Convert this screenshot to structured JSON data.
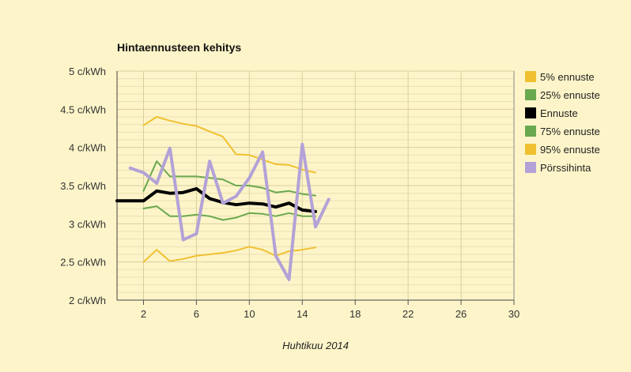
{
  "chart_data": {
    "type": "line",
    "title": "Hintaennusteen kehitys",
    "xlabel": "Huhtikuu 2014",
    "ylabel": "",
    "xlim": [
      0,
      30
    ],
    "ylim": [
      2,
      5
    ],
    "x_ticks": [
      2,
      6,
      10,
      14,
      18,
      22,
      26,
      30
    ],
    "y_ticks": [
      {
        "value": 2,
        "label": "2 c/kWh"
      },
      {
        "value": 2.5,
        "label": "2.5 c/kWh"
      },
      {
        "value": 3,
        "label": "3 c/kWh"
      },
      {
        "value": 3.5,
        "label": "3.5 c/kWh"
      },
      {
        "value": 4,
        "label": "4 c/kWh"
      },
      {
        "value": 4.5,
        "label": "4.5 c/kWh"
      },
      {
        "value": 5,
        "label": "5 c/kWh"
      }
    ],
    "grid": true,
    "legend_position": "right",
    "series": [
      {
        "name": "5% ennuste",
        "color": "#f0c030",
        "x": [
          2,
          3,
          4,
          5,
          6,
          7,
          8,
          9,
          10,
          11,
          12,
          13,
          14,
          15
        ],
        "y": [
          2.5,
          2.66,
          2.51,
          2.54,
          2.58,
          2.6,
          2.62,
          2.65,
          2.7,
          2.66,
          2.58,
          2.64,
          2.66,
          2.69
        ]
      },
      {
        "name": "25% ennuste",
        "color": "#6aa84f",
        "x": [
          2,
          3,
          4,
          5,
          6,
          7,
          8,
          9,
          10,
          11,
          12,
          13,
          14,
          15
        ],
        "y": [
          3.2,
          3.23,
          3.1,
          3.1,
          3.12,
          3.1,
          3.05,
          3.08,
          3.14,
          3.13,
          3.1,
          3.14,
          3.1,
          3.1
        ]
      },
      {
        "name": "Ennuste",
        "color": "#000000",
        "x": [
          0,
          1,
          2,
          3,
          4,
          5,
          6,
          7,
          8,
          9,
          10,
          11,
          12,
          13,
          14,
          15
        ],
        "y": [
          3.3,
          3.3,
          3.3,
          3.43,
          3.4,
          3.41,
          3.46,
          3.33,
          3.28,
          3.25,
          3.27,
          3.26,
          3.22,
          3.27,
          3.18,
          3.16
        ]
      },
      {
        "name": "75% ennuste",
        "color": "#6aa84f",
        "x": [
          2,
          3,
          4,
          5,
          6,
          7,
          8,
          9,
          10,
          11,
          12,
          13,
          14,
          15
        ],
        "y": [
          3.43,
          3.82,
          3.62,
          3.62,
          3.62,
          3.6,
          3.58,
          3.5,
          3.5,
          3.47,
          3.41,
          3.43,
          3.39,
          3.37
        ]
      },
      {
        "name": "95% ennuste",
        "color": "#f0c030",
        "x": [
          2,
          3,
          4,
          5,
          6,
          7,
          8,
          9,
          10,
          11,
          12,
          13,
          14,
          15
        ],
        "y": [
          4.29,
          4.4,
          4.35,
          4.31,
          4.28,
          4.21,
          4.14,
          3.91,
          3.9,
          3.84,
          3.78,
          3.77,
          3.71,
          3.67
        ]
      },
      {
        "name": "Pörssihinta",
        "color": "#b3a2d7",
        "x": [
          1,
          2,
          3,
          4,
          5,
          6,
          7,
          8,
          9,
          10,
          11,
          12,
          13,
          14,
          15,
          16
        ],
        "y": [
          3.73,
          3.67,
          3.53,
          3.99,
          2.79,
          2.87,
          3.82,
          3.27,
          3.36,
          3.6,
          3.94,
          2.58,
          2.27,
          4.04,
          2.96,
          3.32
        ]
      }
    ]
  }
}
